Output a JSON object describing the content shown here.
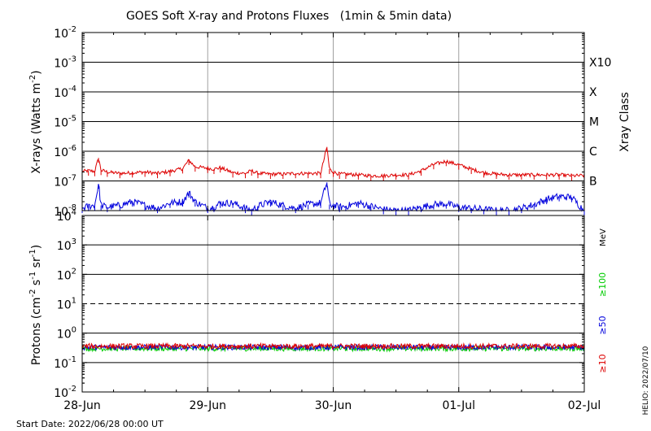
{
  "chart_data": [
    {
      "type": "line",
      "title": "GOES Soft X-ray and Protons Fluxes   (1min & 5min data)",
      "ylabel": "X-rays (Watts m^-2)",
      "yscale": "log",
      "ylim": [
        1e-08,
        0.01
      ],
      "y_ticks": [
        {
          "base": "10",
          "exp": "-2"
        },
        {
          "base": "10",
          "exp": "-3"
        },
        {
          "base": "10",
          "exp": "-4"
        },
        {
          "base": "10",
          "exp": "-5"
        },
        {
          "base": "10",
          "exp": "-6"
        },
        {
          "base": "10",
          "exp": "-7"
        },
        {
          "base": "10",
          "exp": "-8"
        }
      ],
      "right_axis_label": "Xray Class",
      "class_labels": [
        {
          "label": "X10",
          "value": 0.001
        },
        {
          "label": "X",
          "value": 0.0001
        },
        {
          "label": "M",
          "value": 1e-05
        },
        {
          "label": "C",
          "value": 1e-06
        },
        {
          "label": "B",
          "value": 1e-07
        }
      ],
      "grid": true,
      "colors": {
        "long": "#dd0000",
        "short": "#0000dd"
      },
      "series": [
        {
          "color": "#dd0000",
          "x": [
            0,
            0.05,
            0.1,
            0.13,
            0.15,
            0.2,
            0.3,
            0.4,
            0.5,
            0.6,
            0.7,
            0.8,
            0.85,
            0.9,
            1.0,
            1.05,
            1.1,
            1.2,
            1.3,
            1.35,
            1.4,
            1.5,
            1.6,
            1.7,
            1.8,
            1.9,
            1.95,
            1.97,
            2.0,
            2.05,
            2.1,
            2.2,
            2.3,
            2.4,
            2.5,
            2.6,
            2.7,
            2.8,
            2.9,
            3.0,
            3.1,
            3.2,
            3.3,
            3.4,
            3.5,
            3.6,
            3.7,
            3.8,
            3.9,
            4.0
          ],
          "y": [
            2.1e-07,
            2.2e-07,
            2.1e-07,
            6e-07,
            2.3e-07,
            2e-07,
            1.8e-07,
            1.9e-07,
            2e-07,
            1.8e-07,
            2.1e-07,
            2.6e-07,
            5e-07,
            3e-07,
            2.7e-07,
            2.5e-07,
            2.8e-07,
            1.9e-07,
            1.8e-07,
            2.2e-07,
            1.8e-07,
            1.7e-07,
            1.7e-07,
            1.8e-07,
            1.8e-07,
            1.8e-07,
            1.4e-06,
            2.5e-07,
            2e-07,
            1.7e-07,
            1.7e-07,
            1.6e-07,
            1.5e-07,
            1.5e-07,
            1.6e-07,
            1.6e-07,
            2.2e-07,
            3.6e-07,
            4.6e-07,
            3.5e-07,
            2.5e-07,
            1.9e-07,
            1.7e-07,
            1.6e-07,
            1.6e-07,
            1.6e-07,
            1.6e-07,
            1.6e-07,
            1.5e-07,
            1.5e-07
          ]
        },
        {
          "color": "#0000dd",
          "x": [
            0,
            0.05,
            0.1,
            0.13,
            0.15,
            0.2,
            0.3,
            0.4,
            0.5,
            0.6,
            0.7,
            0.8,
            0.85,
            0.9,
            1.0,
            1.05,
            1.1,
            1.2,
            1.3,
            1.35,
            1.4,
            1.5,
            1.6,
            1.7,
            1.8,
            1.9,
            1.95,
            1.97,
            2.0,
            2.05,
            2.1,
            2.2,
            2.3,
            2.4,
            2.5,
            2.6,
            2.7,
            2.8,
            2.9,
            3.0,
            3.1,
            3.2,
            3.3,
            3.4,
            3.5,
            3.6,
            3.7,
            3.8,
            3.9,
            4.0
          ],
          "y": [
            1.2e-08,
            1.4e-08,
            1.5e-08,
            8e-08,
            1.5e-08,
            1.3e-08,
            1.5e-08,
            2e-08,
            1.5e-08,
            1.2e-08,
            1.8e-08,
            2e-08,
            4e-08,
            2e-08,
            1.2e-08,
            1.3e-08,
            1.8e-08,
            1.8e-08,
            1.2e-08,
            1e-08,
            1.4e-08,
            2e-08,
            1.5e-08,
            1.2e-08,
            1.6e-08,
            1.8e-08,
            9e-08,
            1.6e-08,
            1.5e-08,
            1.3e-08,
            1.4e-08,
            1.8e-08,
            1.4e-08,
            1.1e-08,
            1e-08,
            1e-08,
            1.3e-08,
            1.6e-08,
            1.7e-08,
            1.3e-08,
            1.2e-08,
            1.1e-08,
            1e-08,
            1e-08,
            1.2e-08,
            1.6e-08,
            2.4e-08,
            3e-08,
            2.8e-08,
            1e-08
          ]
        }
      ]
    },
    {
      "type": "line",
      "ylabel": "Protons (cm^-2 s^-1 sr^-1)",
      "yscale": "log",
      "ylim": [
        0.01,
        10000
      ],
      "y_ticks": [
        {
          "base": "10",
          "exp": "4"
        },
        {
          "base": "10",
          "exp": "3"
        },
        {
          "base": "10",
          "exp": "2"
        },
        {
          "base": "10",
          "exp": "1"
        },
        {
          "base": "10",
          "exp": "0"
        },
        {
          "base": "10",
          "exp": "-1"
        },
        {
          "base": "10",
          "exp": "-2"
        }
      ],
      "threshold": 10,
      "right_axis_unit": "MeV",
      "channel_labels": [
        {
          "label": "≥100",
          "color": "#00cc00"
        },
        {
          "label": "≥50",
          "color": "#0000dd"
        },
        {
          "label": "≥10",
          "color": "#dd0000"
        }
      ],
      "series": [
        {
          "color": "#dd0000",
          "baseline": 0.36
        },
        {
          "color": "#0000dd",
          "baseline": 0.33
        },
        {
          "color": "#00cc00",
          "baseline": 0.3
        }
      ],
      "x_ticks": [
        "28-Jun",
        "29-Jun",
        "30-Jun",
        "01-Jul",
        "02-Jul"
      ],
      "xlim": [
        0,
        4
      ]
    }
  ],
  "footer": {
    "start_date": "Start Date: 2022/06/28 00:00 UT",
    "helio": "HELIO: 2022/07/10"
  }
}
